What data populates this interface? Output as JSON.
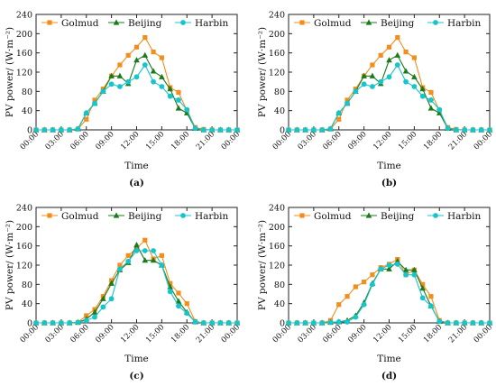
{
  "colors": {
    "Golmud": "#f28e1c",
    "Beijing": "#1b7a1b",
    "Harbin": "#18c4cc",
    "axis": "#222222"
  },
  "chart_data": [
    {
      "type": "line",
      "panel_label": "(a)",
      "xlabel": "Time",
      "ylabel": "PV power/ (W·m⁻²)",
      "ylim": [
        0,
        240
      ],
      "yticks": [
        0,
        40,
        80,
        120,
        160,
        200,
        240
      ],
      "xtick_labels": [
        "00:00",
        "03:00",
        "06:00",
        "09:00",
        "12:00",
        "15:00",
        "18:00",
        "21:00",
        "00:00"
      ],
      "x_hours": [
        0,
        1,
        2,
        3,
        4,
        5,
        6,
        7,
        8,
        9,
        10,
        11,
        12,
        13,
        14,
        15,
        16,
        17,
        18,
        19,
        20,
        21,
        22,
        23,
        24
      ],
      "series": [
        {
          "name": "Golmud",
          "marker": "square",
          "values": [
            0,
            0,
            0,
            0,
            0,
            2,
            22,
            62,
            85,
            112,
            135,
            155,
            172,
            192,
            162,
            150,
            88,
            78,
            40,
            5,
            1,
            0,
            0,
            0,
            0
          ]
        },
        {
          "name": "Beijing",
          "marker": "triangle",
          "values": [
            0,
            0,
            0,
            0,
            0,
            2,
            35,
            55,
            80,
            112,
            112,
            96,
            145,
            155,
            122,
            110,
            85,
            45,
            35,
            3,
            0,
            0,
            0,
            0,
            0
          ]
        },
        {
          "name": "Harbin",
          "marker": "circle",
          "values": [
            0,
            0,
            0,
            0,
            0,
            2,
            35,
            55,
            80,
            95,
            90,
            100,
            110,
            135,
            100,
            90,
            70,
            62,
            42,
            3,
            0,
            0,
            0,
            0,
            0
          ]
        }
      ]
    },
    {
      "type": "line",
      "panel_label": "(b)",
      "xlabel": "Time",
      "ylabel": "PV power/ (W·m⁻²)",
      "ylim": [
        0,
        240
      ],
      "yticks": [
        0,
        40,
        80,
        120,
        160,
        200,
        240
      ],
      "xtick_labels": [
        "00:00",
        "03:00",
        "06:00",
        "09:00",
        "12:00",
        "15:00",
        "18:00",
        "21:00",
        "00:00"
      ],
      "x_hours": [
        0,
        1,
        2,
        3,
        4,
        5,
        6,
        7,
        8,
        9,
        10,
        11,
        12,
        13,
        14,
        15,
        16,
        17,
        18,
        19,
        20,
        21,
        22,
        23,
        24
      ],
      "series": [
        {
          "name": "Golmud",
          "marker": "square",
          "values": [
            0,
            0,
            0,
            0,
            0,
            2,
            22,
            62,
            85,
            112,
            135,
            155,
            172,
            192,
            162,
            150,
            88,
            78,
            40,
            5,
            1,
            0,
            0,
            0,
            0
          ]
        },
        {
          "name": "Beijing",
          "marker": "triangle",
          "values": [
            0,
            0,
            0,
            0,
            0,
            2,
            35,
            55,
            80,
            112,
            112,
            96,
            145,
            155,
            122,
            110,
            85,
            45,
            35,
            3,
            0,
            0,
            0,
            0,
            0
          ]
        },
        {
          "name": "Harbin",
          "marker": "circle",
          "values": [
            0,
            0,
            0,
            0,
            0,
            2,
            35,
            55,
            80,
            95,
            90,
            100,
            110,
            135,
            100,
            90,
            70,
            62,
            42,
            3,
            0,
            0,
            0,
            0,
            0
          ]
        }
      ]
    },
    {
      "type": "line",
      "panel_label": "(c)",
      "xlabel": "Time",
      "ylabel": "PV power/ (W·m⁻²)",
      "ylim": [
        0,
        240
      ],
      "yticks": [
        0,
        40,
        80,
        120,
        160,
        200,
        240
      ],
      "xtick_labels": [
        "00:00",
        "03:00",
        "06:00",
        "09:00",
        "12:00",
        "15:00",
        "18:00",
        "21:00",
        "00:00"
      ],
      "x_hours": [
        0,
        1,
        2,
        3,
        4,
        5,
        6,
        7,
        8,
        9,
        10,
        11,
        12,
        13,
        14,
        15,
        16,
        17,
        18,
        19,
        20,
        21,
        22,
        23,
        24
      ],
      "series": [
        {
          "name": "Golmud",
          "marker": "square",
          "values": [
            0,
            0,
            0,
            0,
            0,
            1,
            15,
            28,
            55,
            88,
            120,
            140,
            155,
            172,
            133,
            140,
            82,
            62,
            40,
            3,
            0,
            0,
            0,
            0,
            0
          ]
        },
        {
          "name": "Beijing",
          "marker": "triangle",
          "values": [
            0,
            0,
            0,
            0,
            0,
            1,
            8,
            22,
            50,
            82,
            110,
            125,
            162,
            130,
            130,
            120,
            75,
            45,
            22,
            2,
            0,
            0,
            0,
            0,
            0
          ]
        },
        {
          "name": "Harbin",
          "marker": "circle",
          "values": [
            0,
            0,
            0,
            0,
            0,
            1,
            5,
            12,
            33,
            50,
            112,
            128,
            150,
            150,
            150,
            120,
            65,
            35,
            20,
            2,
            0,
            0,
            0,
            0,
            0
          ]
        }
      ]
    },
    {
      "type": "line",
      "panel_label": "(d)",
      "xlabel": "Time",
      "ylabel": "PV power/ (W·m⁻²)",
      "ylim": [
        0,
        240
      ],
      "yticks": [
        0,
        40,
        80,
        120,
        160,
        200,
        240
      ],
      "xtick_labels": [
        "00:00",
        "03:00",
        "06:00",
        "09:00",
        "12:00",
        "15:00",
        "18:00",
        "21:00",
        "00:00"
      ],
      "x_hours": [
        0,
        1,
        2,
        3,
        4,
        5,
        6,
        7,
        8,
        9,
        10,
        11,
        12,
        13,
        14,
        15,
        16,
        17,
        18,
        19,
        20,
        21,
        22,
        23,
        24
      ],
      "series": [
        {
          "name": "Golmud",
          "marker": "square",
          "values": [
            0,
            0,
            0,
            0,
            0,
            5,
            38,
            55,
            75,
            85,
            100,
            115,
            122,
            132,
            100,
            110,
            80,
            55,
            5,
            0,
            0,
            0,
            0,
            0,
            0
          ]
        },
        {
          "name": "Beijing",
          "marker": "triangle",
          "values": [
            0,
            0,
            0,
            0,
            0,
            1,
            2,
            5,
            15,
            42,
            82,
            112,
            112,
            128,
            110,
            110,
            72,
            35,
            3,
            0,
            0,
            0,
            0,
            0,
            0
          ]
        },
        {
          "name": "Harbin",
          "marker": "circle",
          "values": [
            0,
            0,
            0,
            0,
            0,
            1,
            2,
            2,
            12,
            38,
            80,
            112,
            120,
            122,
            100,
            100,
            52,
            35,
            3,
            0,
            0,
            0,
            0,
            0,
            0
          ]
        }
      ]
    }
  ]
}
